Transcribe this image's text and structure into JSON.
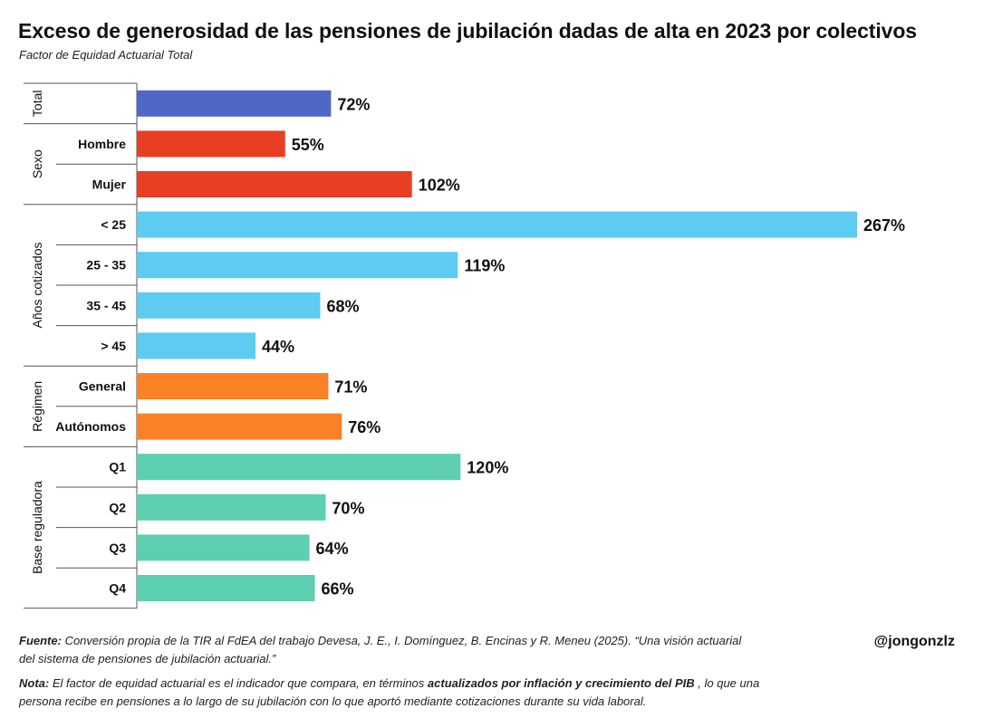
{
  "title": "Exceso de generosidad de las pensiones de jubilación dadas de alta en 2023 por colectivos",
  "subtitle": "Factor de Equidad Actuarial Total",
  "footer": {
    "fuente_label": "Fuente:",
    "fuente_text": " Conversión propia de la TIR al FdEA del trabajo Devesa, J. E., I. Domínguez, B. Encinas y R. Meneu (2025). “Una visión actuarial del sistema de pensiones de jubilación actuarial.”",
    "nota_label": "Nota:",
    "nota_text_1": " El factor de equidad actuarial es el indicador que compara, en términos ",
    "nota_bold": "actualizados por inflación y crecimiento del PIB",
    "nota_text_2": " , lo que una persona recibe en pensiones a lo largo de su jubilación con lo que aportó mediante cotizaciones durante su vida laboral.",
    "handle": "@jongonzlz"
  },
  "chart_data": {
    "type": "bar",
    "orientation": "horizontal",
    "xlim": [
      0,
      267
    ],
    "grid": false,
    "groups": [
      {
        "name": "Total",
        "color": "#4f68c8",
        "items": [
          {
            "label": "",
            "value": 72,
            "value_label": "72%"
          }
        ]
      },
      {
        "name": "Sexo",
        "color": "#e83e24",
        "items": [
          {
            "label": "Hombre",
            "value": 55,
            "value_label": "55%"
          },
          {
            "label": "Mujer",
            "value": 102,
            "value_label": "102%"
          }
        ]
      },
      {
        "name": "Años cotizados",
        "color": "#5ecbf2",
        "items": [
          {
            "label": "< 25",
            "value": 267,
            "value_label": "267%"
          },
          {
            "label": "25 - 35",
            "value": 119,
            "value_label": "119%"
          },
          {
            "label": "35 - 45",
            "value": 68,
            "value_label": "68%"
          },
          {
            "label": "> 45",
            "value": 44,
            "value_label": "44%"
          }
        ]
      },
      {
        "name": "Régimen",
        "color": "#fa8125",
        "items": [
          {
            "label": "General",
            "value": 71,
            "value_label": "71%"
          },
          {
            "label": "Autónomos",
            "value": 76,
            "value_label": "76%"
          }
        ]
      },
      {
        "name": "Base reguladora",
        "color": "#5ccfb0",
        "items": [
          {
            "label": "Q1",
            "value": 120,
            "value_label": "120%"
          },
          {
            "label": "Q2",
            "value": 70,
            "value_label": "70%"
          },
          {
            "label": "Q3",
            "value": 64,
            "value_label": "64%"
          },
          {
            "label": "Q4",
            "value": 66,
            "value_label": "66%"
          }
        ]
      }
    ]
  }
}
